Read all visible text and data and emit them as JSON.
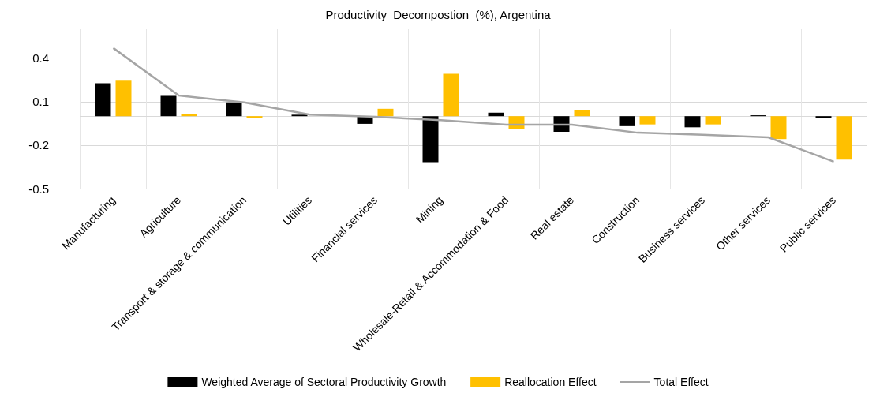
{
  "chart_data": {
    "type": "bar",
    "title": "Productivity  Decompostion  (%), Argentina",
    "categories": [
      "Manufacturing",
      "Agriculture",
      "Transport & storage & communication",
      "Utilities",
      "Financial services",
      "Mining",
      "Wholesale-Retail & Accommodation & Food",
      "Real estate",
      "Construction",
      "Business services",
      "Other services",
      "Public services"
    ],
    "series": [
      {
        "name": "Weighted Average of Sectoral Productivity Growth",
        "color": "#000000",
        "values": [
          0.227,
          0.14,
          0.095,
          0.01,
          -0.053,
          -0.318,
          0.024,
          -0.108,
          -0.069,
          -0.077,
          0.006,
          -0.014
        ]
      },
      {
        "name": "Reallocation Effect",
        "color": "#ffc000",
        "values": [
          0.245,
          0.012,
          -0.012,
          null,
          0.051,
          0.292,
          -0.089,
          0.043,
          -0.057,
          -0.057,
          -0.158,
          -0.3
        ]
      },
      {
        "name": "Total Effect",
        "type": "line",
        "color": "#a5a5a5",
        "values": [
          0.47,
          0.142,
          0.095,
          0.01,
          -0.004,
          -0.028,
          -0.059,
          -0.059,
          -0.114,
          -0.128,
          -0.146,
          -0.314
        ]
      }
    ],
    "ylim": [
      -0.5,
      0.6
    ],
    "yticks": [
      -0.5,
      -0.2,
      0.1,
      0.4
    ],
    "grid": true,
    "legend": "bottom",
    "marker": "none"
  }
}
